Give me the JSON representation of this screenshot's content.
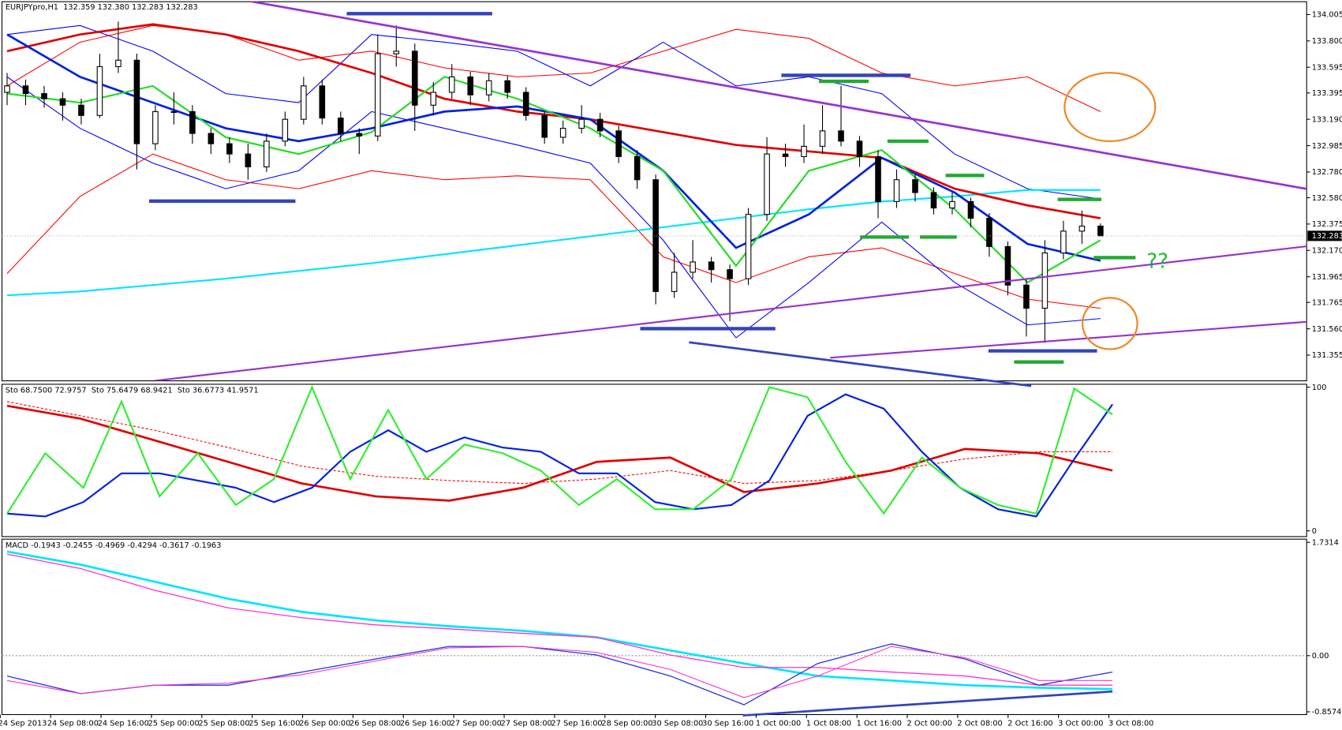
{
  "chart_data": [
    {
      "type": "candlestick",
      "title": "EURJPYpro,H1  132.359 132.380 132.283 132.283",
      "ylim": [
        131.155,
        134.105
      ],
      "yticks": [
        134.005,
        {
          "value": 133.8,
          "label": "133.800"
        },
        133.595,
        133.395,
        {
          "value": 133.19,
          "label": "133.190"
        },
        132.985,
        {
          "value": 132.78,
          "label": "132.780"
        },
        {
          "value": 132.58,
          "label": "132.580"
        },
        132.375,
        {
          "value": 132.17,
          "label": "132.170"
        },
        131.965,
        131.765,
        {
          "value": 131.56,
          "label": "131.560"
        },
        131.355
      ],
      "last_price": 132.283,
      "annotation": "??",
      "ohlc": [
        [
          133.4,
          133.55,
          133.3,
          133.45
        ],
        [
          133.45,
          133.5,
          133.3,
          133.39
        ],
        [
          133.39,
          133.45,
          133.28,
          133.35
        ],
        [
          133.35,
          133.4,
          133.18,
          133.3
        ],
        [
          133.3,
          133.35,
          133.15,
          133.22
        ],
        [
          133.22,
          133.7,
          133.2,
          133.6
        ],
        [
          133.6,
          133.95,
          133.55,
          133.65
        ],
        [
          133.65,
          133.7,
          132.8,
          133.0
        ],
        [
          133.0,
          133.3,
          132.95,
          133.25
        ],
        [
          133.25,
          133.4,
          133.15,
          133.25
        ],
        [
          133.25,
          133.3,
          133.0,
          133.08
        ],
        [
          133.08,
          133.12,
          132.92,
          133.0
        ],
        [
          133.0,
          133.05,
          132.85,
          132.92
        ],
        [
          132.92,
          133.0,
          132.72,
          132.82
        ],
        [
          132.82,
          133.08,
          132.78,
          133.02
        ],
        [
          133.02,
          133.25,
          132.98,
          133.19
        ],
        [
          133.19,
          133.52,
          133.15,
          133.45
        ],
        [
          133.45,
          133.5,
          133.15,
          133.2
        ],
        [
          133.2,
          133.25,
          133.02,
          133.08
        ],
        [
          133.08,
          133.12,
          132.92,
          133.06
        ],
        [
          133.06,
          133.85,
          133.02,
          133.7
        ],
        [
          133.7,
          133.92,
          133.6,
          133.72
        ],
        [
          133.72,
          133.78,
          133.1,
          133.3
        ],
        [
          133.3,
          133.48,
          133.22,
          133.4
        ],
        [
          133.4,
          133.62,
          133.35,
          133.52
        ],
        [
          133.52,
          133.56,
          133.3,
          133.38
        ],
        [
          133.38,
          133.55,
          133.33,
          133.49
        ],
        [
          133.49,
          133.53,
          133.35,
          133.4
        ],
        [
          133.4,
          133.44,
          133.18,
          133.22
        ],
        [
          133.22,
          133.25,
          133.0,
          133.05
        ],
        [
          133.05,
          133.18,
          133.0,
          133.12
        ],
        [
          133.12,
          133.3,
          133.08,
          133.19
        ],
        [
          133.19,
          133.24,
          133.05,
          133.1
        ],
        [
          133.1,
          133.14,
          132.85,
          132.9
        ],
        [
          132.9,
          132.95,
          132.65,
          132.72
        ],
        [
          132.72,
          132.76,
          131.75,
          131.85
        ],
        [
          131.85,
          132.15,
          131.8,
          132.0
        ],
        [
          132.0,
          132.25,
          131.95,
          132.08
        ],
        [
          132.08,
          132.12,
          131.92,
          132.02
        ],
        [
          132.02,
          132.06,
          131.62,
          131.95
        ],
        [
          131.95,
          132.5,
          131.9,
          132.45
        ],
        [
          132.45,
          133.05,
          132.4,
          132.92
        ],
        [
          132.92,
          133.0,
          132.82,
          132.9
        ],
        [
          132.9,
          133.15,
          132.85,
          132.98
        ],
        [
          132.98,
          133.3,
          132.92,
          133.1
        ],
        [
          133.1,
          133.45,
          132.98,
          133.02
        ],
        [
          133.02,
          133.06,
          132.82,
          132.9
        ],
        [
          132.9,
          132.95,
          132.42,
          132.55
        ],
        [
          132.55,
          132.8,
          132.5,
          132.72
        ],
        [
          132.72,
          132.76,
          132.55,
          132.62
        ],
        [
          132.62,
          132.66,
          132.45,
          132.5
        ],
        [
          132.5,
          132.62,
          132.45,
          132.55
        ],
        [
          132.55,
          132.58,
          132.35,
          132.42
        ],
        [
          132.42,
          132.46,
          132.12,
          132.2
        ],
        [
          132.2,
          132.24,
          131.82,
          131.9
        ],
        [
          131.9,
          131.95,
          131.5,
          131.72
        ],
        [
          131.72,
          132.25,
          131.45,
          132.15
        ],
        [
          132.15,
          132.4,
          132.1,
          132.32
        ],
        [
          132.32,
          132.48,
          132.22,
          132.359
        ],
        [
          132.359,
          132.38,
          132.283,
          132.283
        ]
      ],
      "series": [
        {
          "color": "#ff0000",
          "width": 1,
          "values": [
            133.45,
            133.79,
            133.92,
            133.85,
            133.65,
            133.72,
            133.59,
            133.52,
            133.55,
            133.72,
            133.89,
            133.82,
            133.55,
            133.45,
            133.52,
            133.25
          ]
        },
        {
          "color": "#ff0000",
          "width": 1,
          "values": [
            131.99,
            132.59,
            132.92,
            132.72,
            132.65,
            132.79,
            132.72,
            132.75,
            132.72,
            132.12,
            131.92,
            132.12,
            132.19,
            131.99,
            131.79,
            131.72
          ]
        },
        {
          "color": "#0000ff",
          "width": 1,
          "values": [
            133.85,
            133.92,
            133.72,
            133.39,
            133.32,
            133.85,
            133.79,
            133.72,
            133.45,
            133.79,
            133.45,
            133.52,
            133.39,
            132.92,
            132.65,
            132.57
          ]
        },
        {
          "color": "#0000ff",
          "width": 1,
          "values": [
            133.52,
            133.12,
            132.85,
            132.65,
            132.79,
            133.25,
            133.12,
            132.99,
            132.85,
            132.25,
            131.49,
            131.92,
            132.39,
            131.92,
            131.59,
            131.64
          ]
        },
        {
          "color": "#00e5ff",
          "width": 2,
          "values": [
            131.82,
            131.85,
            131.9,
            131.95,
            132.01,
            132.07,
            132.14,
            132.21,
            132.28,
            132.35,
            132.42,
            132.49,
            132.55,
            132.59,
            132.64,
            132.64
          ]
        },
        {
          "color": "#e00000",
          "width": 2.5,
          "values": [
            133.72,
            133.85,
            133.93,
            133.85,
            133.72,
            133.55,
            133.35,
            133.25,
            133.19,
            133.09,
            132.99,
            132.94,
            132.89,
            132.65,
            132.52,
            132.42
          ]
        },
        {
          "color": "#0022dd",
          "width": 2.5,
          "values": [
            133.85,
            133.52,
            133.32,
            133.12,
            133.02,
            133.12,
            133.25,
            133.29,
            133.19,
            132.79,
            132.19,
            132.45,
            132.89,
            132.62,
            132.22,
            132.09
          ]
        },
        {
          "color": "#22dd22",
          "width": 2,
          "values": [
            133.39,
            133.32,
            133.45,
            133.05,
            132.92,
            133.09,
            133.52,
            133.35,
            133.12,
            132.79,
            132.05,
            132.79,
            132.95,
            132.49,
            131.92,
            132.25
          ]
        }
      ]
    },
    {
      "type": "line",
      "title": "Sto 68.7500 72.9757  Sto 75.6479 68.9421  Sto 36.6773 41.9571",
      "ylim": [
        -4,
        102
      ],
      "yticks": [
        100,
        0
      ],
      "series": [
        {
          "color": "#ff0000",
          "width": 1,
          "dash": true,
          "values": [
            90,
            80,
            70,
            58,
            45,
            38,
            35,
            33,
            36,
            42,
            33,
            35,
            42,
            50,
            55,
            55
          ]
        },
        {
          "color": "#e00000",
          "width": 2.5,
          "values": [
            87,
            78,
            63,
            48,
            33,
            24,
            21,
            30,
            48,
            51,
            27,
            33,
            42,
            57,
            54,
            42
          ]
        },
        {
          "color": "#0022dd",
          "width": 2,
          "values": [
            12,
            10,
            20,
            40,
            40,
            35,
            30,
            20,
            30,
            55,
            70,
            55,
            65,
            58,
            55,
            40,
            40,
            20,
            15,
            18,
            35,
            80,
            95,
            85,
            55,
            30,
            15,
            10,
            50,
            88
          ]
        },
        {
          "color": "#33ee33",
          "width": 2,
          "values": [
            12,
            54,
            30,
            90,
            24,
            54,
            18,
            36,
            100,
            36,
            84,
            36,
            60,
            54,
            42,
            18,
            36,
            15,
            15,
            36,
            100,
            93,
            48,
            12,
            51,
            30,
            18,
            12,
            99,
            81
          ]
        }
      ]
    },
    {
      "type": "line",
      "title": "MACD -0.1943 -0.2455 -0.4969 -0.4294 -0.3617 -0.1963",
      "ylim": [
        -0.9,
        1.78
      ],
      "yticks": [
        1.7314,
        {
          "value": 0,
          "label": "0.00"
        },
        -0.8574
      ],
      "zero_line": true,
      "series": [
        {
          "color": "#00e5ff",
          "width": 2.5,
          "values": [
            1.59,
            1.39,
            1.13,
            0.87,
            0.67,
            0.54,
            0.45,
            0.38,
            0.28,
            0.08,
            -0.12,
            -0.31,
            -0.38,
            -0.45,
            -0.49,
            -0.51
          ]
        },
        {
          "color": "#ff33cc",
          "width": 1.2,
          "values": [
            1.55,
            1.33,
            1.0,
            0.73,
            0.58,
            0.47,
            0.41,
            0.34,
            0.28,
            0.01,
            -0.18,
            -0.18,
            -0.25,
            -0.31,
            -0.45,
            -0.45
          ]
        },
        {
          "color": "#2233dd",
          "width": 1.2,
          "values": [
            -0.31,
            -0.58,
            -0.45,
            -0.45,
            -0.25,
            -0.05,
            0.14,
            0.14,
            0.01,
            -0.31,
            -0.75,
            -0.12,
            0.18,
            -0.05,
            -0.45,
            -0.25
          ]
        },
        {
          "color": "#ff33cc",
          "width": 1,
          "values": [
            -0.38,
            -0.58,
            -0.45,
            -0.42,
            -0.29,
            -0.08,
            0.12,
            0.14,
            0.05,
            -0.21,
            -0.64,
            -0.31,
            0.14,
            -0.03,
            -0.38,
            -0.38
          ]
        }
      ],
      "x_tick_labels": [
        "24 Sep 2013",
        "24 Sep 08:00",
        "24 Sep 16:00",
        "25 Sep 00:00",
        "25 Sep 08:00",
        "25 Sep 16:00",
        "26 Sep 00:00",
        "26 Sep 08:00",
        "26 Sep 16:00",
        "27 Sep 00:00",
        "27 Sep 08:00",
        "27 Sep 16:00",
        "28 Sep 00:00",
        "30 Sep 08:00",
        "30 Sep 16:00",
        "1 Oct 00:00",
        "1 Oct 08:00",
        "1 Oct 16:00",
        "2 Oct 00:00",
        "2 Oct 08:00",
        "2 Oct 16:00",
        "3 Oct 00:00",
        "3 Oct 08:00"
      ]
    }
  ]
}
